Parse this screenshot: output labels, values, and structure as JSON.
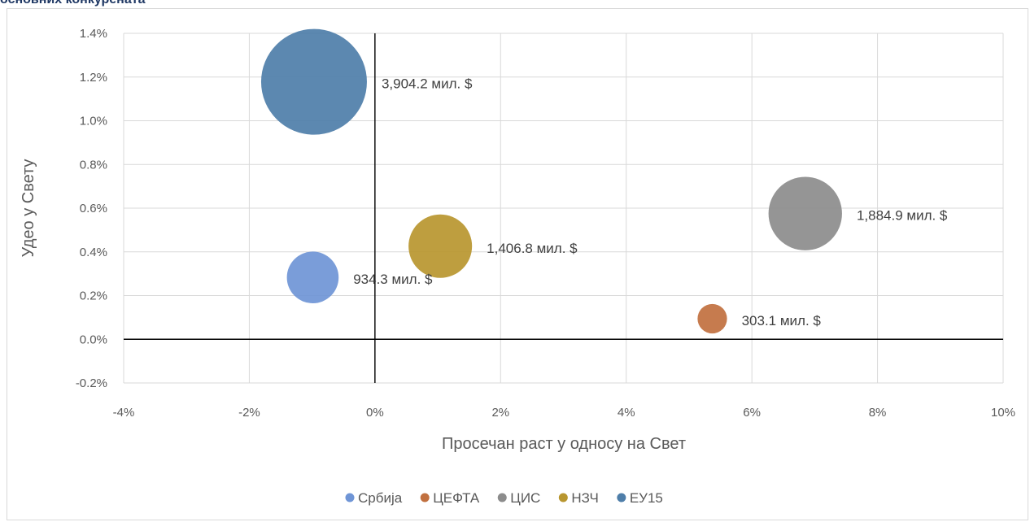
{
  "page_title": "основних конкурената",
  "chart_data": {
    "type": "scatter",
    "subtype": "bubble",
    "xlabel": "Просечан раст у односу на Свет",
    "ylabel": "Удео у Свету",
    "xlim": [
      -0.04,
      0.1
    ],
    "ylim": [
      -0.002,
      0.014
    ],
    "x_ticks": [
      -0.04,
      -0.02,
      0,
      0.02,
      0.04,
      0.06,
      0.08,
      0.1
    ],
    "x_tick_labels": [
      "-4%",
      "-2%",
      "0%",
      "2%",
      "4%",
      "6%",
      "8%",
      "10%"
    ],
    "y_ticks": [
      -0.002,
      0,
      0.002,
      0.004,
      0.006,
      0.008,
      0.01,
      0.012,
      0.014
    ],
    "y_tick_labels": [
      "-0.2%",
      "0.0%",
      "0.2%",
      "0.4%",
      "0.6%",
      "0.8%",
      "1.0%",
      "1.2%",
      "1.4%"
    ],
    "grid": true,
    "legend_position": "bottom",
    "series": [
      {
        "name": "Србија",
        "x": -0.0099,
        "y": 0.00283,
        "size": 934.3,
        "label": "934.3 мил. $",
        "color": "#6f95d6"
      },
      {
        "name": "ЦЕФТА",
        "x": 0.0537,
        "y": 0.00094,
        "size": 303.1,
        "label": "303.1 мил. $",
        "color": "#c1703f"
      },
      {
        "name": "ЦИС",
        "x": 0.0685,
        "y": 0.00575,
        "size": 1884.9,
        "label": "1,884.9 мил. $",
        "color": "#8c8c8c"
      },
      {
        "name": "НЗЧ",
        "x": 0.0104,
        "y": 0.00426,
        "size": 1406.8,
        "label": "1,406.8 мил. $",
        "color": "#b8962f"
      },
      {
        "name": "ЕУ15",
        "x": -0.0097,
        "y": 0.01178,
        "size": 3904.2,
        "label": "3,904.2 мил. $",
        "color": "#4e7ea9"
      }
    ]
  }
}
